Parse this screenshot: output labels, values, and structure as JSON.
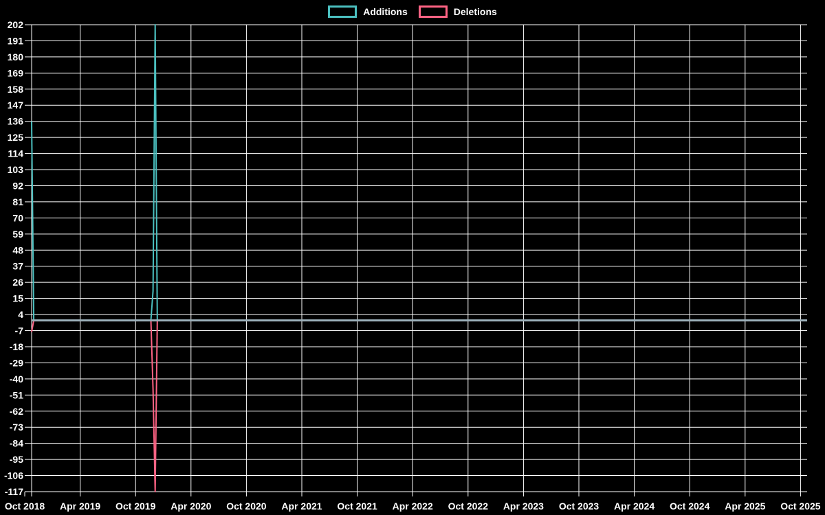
{
  "legend": {
    "position": "top-center",
    "items": [
      {
        "label": "Additions",
        "color": "#4BC0C0"
      },
      {
        "label": "Deletions",
        "color": "#FF6384"
      }
    ]
  },
  "chart_data": {
    "type": "line",
    "title": "",
    "xlabel": "",
    "ylabel": "",
    "background_color": "#000000",
    "grid": true,
    "grid_color": "#FFFFFF",
    "text_color": "#FFFFFF",
    "legend_position": "top-center",
    "x_tick_labels": [
      "Oct 2018",
      "Apr 2019",
      "Oct 2019",
      "Apr 2020",
      "Oct 2020",
      "Apr 2021",
      "Oct 2021",
      "Apr 2022",
      "Oct 2022",
      "Apr 2023",
      "Oct 2023",
      "Apr 2024",
      "Oct 2024",
      "Apr 2025",
      "Oct 2025"
    ],
    "y_tick_labels": [
      202,
      191,
      180,
      169,
      158,
      147,
      136,
      125,
      114,
      103,
      92,
      81,
      70,
      59,
      48,
      37,
      26,
      15,
      4,
      -7,
      -18,
      -29,
      -40,
      -51,
      -62,
      -73,
      -84,
      -95,
      -106,
      -117
    ],
    "ylim": [
      -117,
      202
    ],
    "x_unit": "week-index (0 = week of Oct 21 2018, 364 = week of Oct 19 2025)",
    "x_range_weeks": [
      0,
      364
    ],
    "series": [
      {
        "name": "Additions",
        "color": "#4BC0C0",
        "points": [
          [
            0,
            136
          ],
          [
            1,
            0
          ],
          [
            56,
            0
          ],
          [
            57,
            20
          ],
          [
            58,
            202
          ],
          [
            59,
            0
          ],
          [
            364,
            0
          ]
        ]
      },
      {
        "name": "Deletions",
        "color": "#FF6384",
        "points": [
          [
            0,
            -8
          ],
          [
            1,
            0
          ],
          [
            56,
            0
          ],
          [
            57,
            -47
          ],
          [
            58,
            -117
          ],
          [
            59,
            0
          ],
          [
            364,
            0
          ]
        ]
      }
    ],
    "zero_line": {
      "value": 0,
      "color": "#9BAFB9",
      "width": 3
    }
  }
}
